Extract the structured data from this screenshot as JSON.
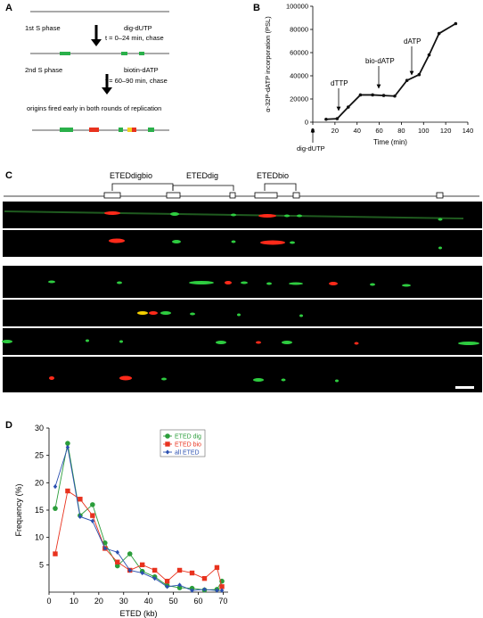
{
  "panels": {
    "A": {
      "label": "A",
      "step1": {
        "phase": "1st  S phase",
        "reagent": "dig-dUTP",
        "condition": "t = 0–24 min, chase"
      },
      "step2": {
        "phase": "2nd  S phase",
        "reagent": "biotin-dATP",
        "condition": "t = 60–90 min, chase"
      },
      "result": "origins fired early in both rounds of replication"
    },
    "B": {
      "label": "B",
      "annotations": {
        "dTTP": "dTTP",
        "bio_dATP": "bio-dATP",
        "dATP": "dATP",
        "dig_dUTP": "dig-dUTP"
      }
    },
    "C": {
      "label": "C",
      "map_labels": {
        "digbio": "ETEDdigbio",
        "dig": "ETEDdig",
        "bio": "ETEDbio"
      },
      "colors": {
        "dig": "#2ecc40",
        "bio": "#ff2a1a",
        "overlap": "#f5d000",
        "background": "#000000"
      }
    },
    "D": {
      "label": "D"
    }
  },
  "chart_data": [
    {
      "type": "line",
      "panel": "B",
      "xlabel": "Time (min)",
      "ylabel": "α-32P-dATP incorporation (PSL)",
      "xlim": [
        0,
        140
      ],
      "ylim": [
        0,
        100000
      ],
      "xticks": [
        0,
        20,
        40,
        60,
        80,
        100,
        120,
        140
      ],
      "yticks": [
        0,
        20000,
        40000,
        60000,
        80000,
        100000
      ],
      "series": [
        {
          "x": [
            12,
            22,
            32,
            43,
            54,
            64,
            74,
            85,
            96,
            105,
            114,
            129
          ],
          "values": [
            2500,
            3000,
            13000,
            23500,
            23500,
            23000,
            22500,
            36000,
            41000,
            58000,
            76500,
            85000
          ]
        }
      ]
    },
    {
      "type": "line",
      "panel": "D",
      "xlabel": "ETED (kb)",
      "ylabel": "Frequency (%)",
      "xlim": [
        0,
        72
      ],
      "ylim": [
        0,
        30
      ],
      "xticks": [
        0,
        10,
        20,
        30,
        40,
        50,
        60,
        70
      ],
      "yticks": [
        5,
        10,
        15,
        20,
        25,
        30
      ],
      "legend_position": "top-right",
      "series": [
        {
          "name": "ETED dig",
          "color": "#2a9d3a",
          "marker": "circle",
          "x": [
            2.5,
            7.5,
            12.5,
            17.5,
            22.5,
            27.5,
            32.5,
            37.5,
            42.5,
            47.5,
            52.5,
            57.5,
            62.5,
            67.5,
            69.5
          ],
          "values": [
            15.3,
            27.2,
            14.0,
            16.0,
            9.0,
            4.8,
            7.0,
            3.8,
            2.8,
            1.2,
            0.8,
            0.7,
            0.4,
            0.5,
            2.0
          ]
        },
        {
          "name": "ETED bio",
          "color": "#e8321e",
          "marker": "square",
          "x": [
            2.5,
            7.5,
            12.5,
            17.5,
            22.5,
            27.5,
            32.5,
            37.5,
            42.5,
            47.5,
            52.5,
            57.5,
            62.5,
            67.5,
            69.5
          ],
          "values": [
            7.0,
            18.5,
            17.0,
            14.0,
            8.0,
            5.5,
            4.0,
            5.0,
            4.0,
            2.0,
            4.0,
            3.5,
            2.5,
            4.5,
            1.0
          ]
        },
        {
          "name": "all ETED",
          "color": "#2a4fb0",
          "marker": "diamond",
          "x": [
            2.5,
            7.5,
            12.5,
            17.5,
            22.5,
            27.5,
            32.5,
            37.5,
            42.5,
            47.5,
            52.5,
            57.5,
            62.5,
            67.5,
            69.5
          ],
          "values": [
            19.3,
            26.5,
            13.8,
            13.0,
            8.0,
            7.3,
            4.0,
            3.5,
            2.5,
            1.0,
            1.3,
            0.3,
            0.5,
            0.3,
            0.3
          ]
        }
      ]
    }
  ]
}
